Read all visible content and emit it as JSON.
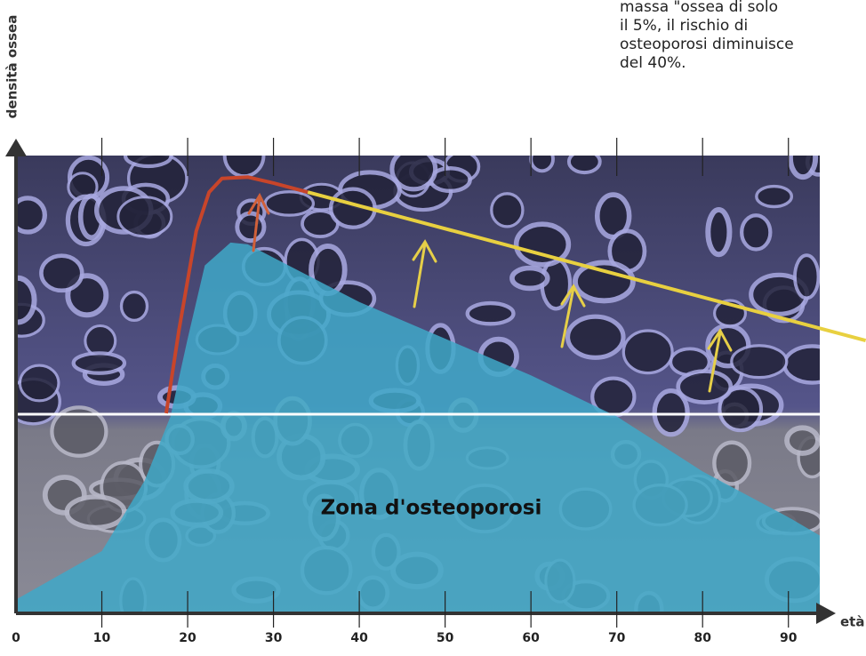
{
  "chart_data": {
    "type": "line",
    "y_label": "densità ossea",
    "x_label": "età",
    "zone_label": "Zona d'osteoporosi",
    "note_lines": [
      "massa \"ossea di solo",
      "il 5%, il rischio di",
      "osteoporosi diminuisce",
      "del 40%."
    ],
    "xlim": [
      0,
      95
    ],
    "ylim": [
      0,
      100
    ],
    "xticks": [
      0,
      10,
      20,
      30,
      40,
      50,
      60,
      70,
      80,
      90
    ],
    "threshold": {
      "value": 43.5,
      "color": "#ffffff"
    },
    "series": [
      {
        "style": "area",
        "color": "#3fa8c8",
        "x": [
          0,
          10,
          15,
          18,
          20,
          22,
          25,
          27,
          40,
          60,
          70,
          80,
          90,
          95
        ],
        "values": [
          3,
          13.6,
          29,
          43,
          60,
          76,
          81,
          80.6,
          68,
          52,
          43,
          31,
          21,
          15.5
        ]
      },
      {
        "style": "line",
        "color": "#c8452a",
        "x": [
          17.5,
          19,
          21,
          22.5,
          24,
          27,
          30,
          34
        ],
        "values": [
          43.7,
          62,
          83.5,
          92,
          95,
          95.3,
          94,
          92
        ]
      },
      {
        "style": "line",
        "color": "#e8d040",
        "x": [
          34,
          99
        ],
        "values": [
          92,
          59.6
        ]
      }
    ]
  }
}
